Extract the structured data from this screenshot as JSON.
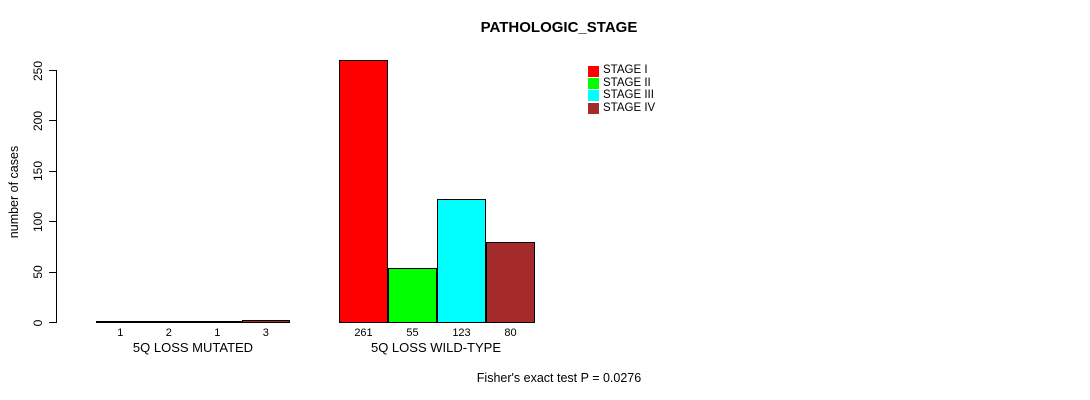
{
  "title": "PATHOLOGIC_STAGE",
  "caption": "Fisher's exact test P = 0.0276",
  "legend": {
    "items": [
      {
        "label": "STAGE I",
        "color": "#FF0000"
      },
      {
        "label": "STAGE II",
        "color": "#00FF00"
      },
      {
        "label": "STAGE III",
        "color": "#00FFFF"
      },
      {
        "label": "STAGE IV",
        "color": "#A52A2A"
      }
    ]
  },
  "chart_data": {
    "type": "bar",
    "title": "PATHOLOGIC_STAGE",
    "xlabel": "",
    "ylabel": "number of cases",
    "ylim": [
      0,
      250
    ],
    "yticks": [
      0,
      50,
      100,
      150,
      200,
      250
    ],
    "grid": false,
    "legend_position": "top-right",
    "categories": [
      "5Q LOSS MUTATED",
      "5Q LOSS WILD-TYPE"
    ],
    "series": [
      {
        "name": "STAGE I",
        "color": "#FF0000",
        "values": [
          1,
          261
        ]
      },
      {
        "name": "STAGE II",
        "color": "#00FF00",
        "values": [
          2,
          55
        ]
      },
      {
        "name": "STAGE III",
        "color": "#00FFFF",
        "values": [
          1,
          123
        ]
      },
      {
        "name": "STAGE IV",
        "color": "#A52A2A",
        "values": [
          3,
          80
        ]
      }
    ],
    "bar_value_labels": [
      [
        "1",
        "2",
        "1",
        "3"
      ],
      [
        "261",
        "55",
        "123",
        "80"
      ]
    ],
    "annotation": "Fisher's exact test P = 0.0276"
  }
}
